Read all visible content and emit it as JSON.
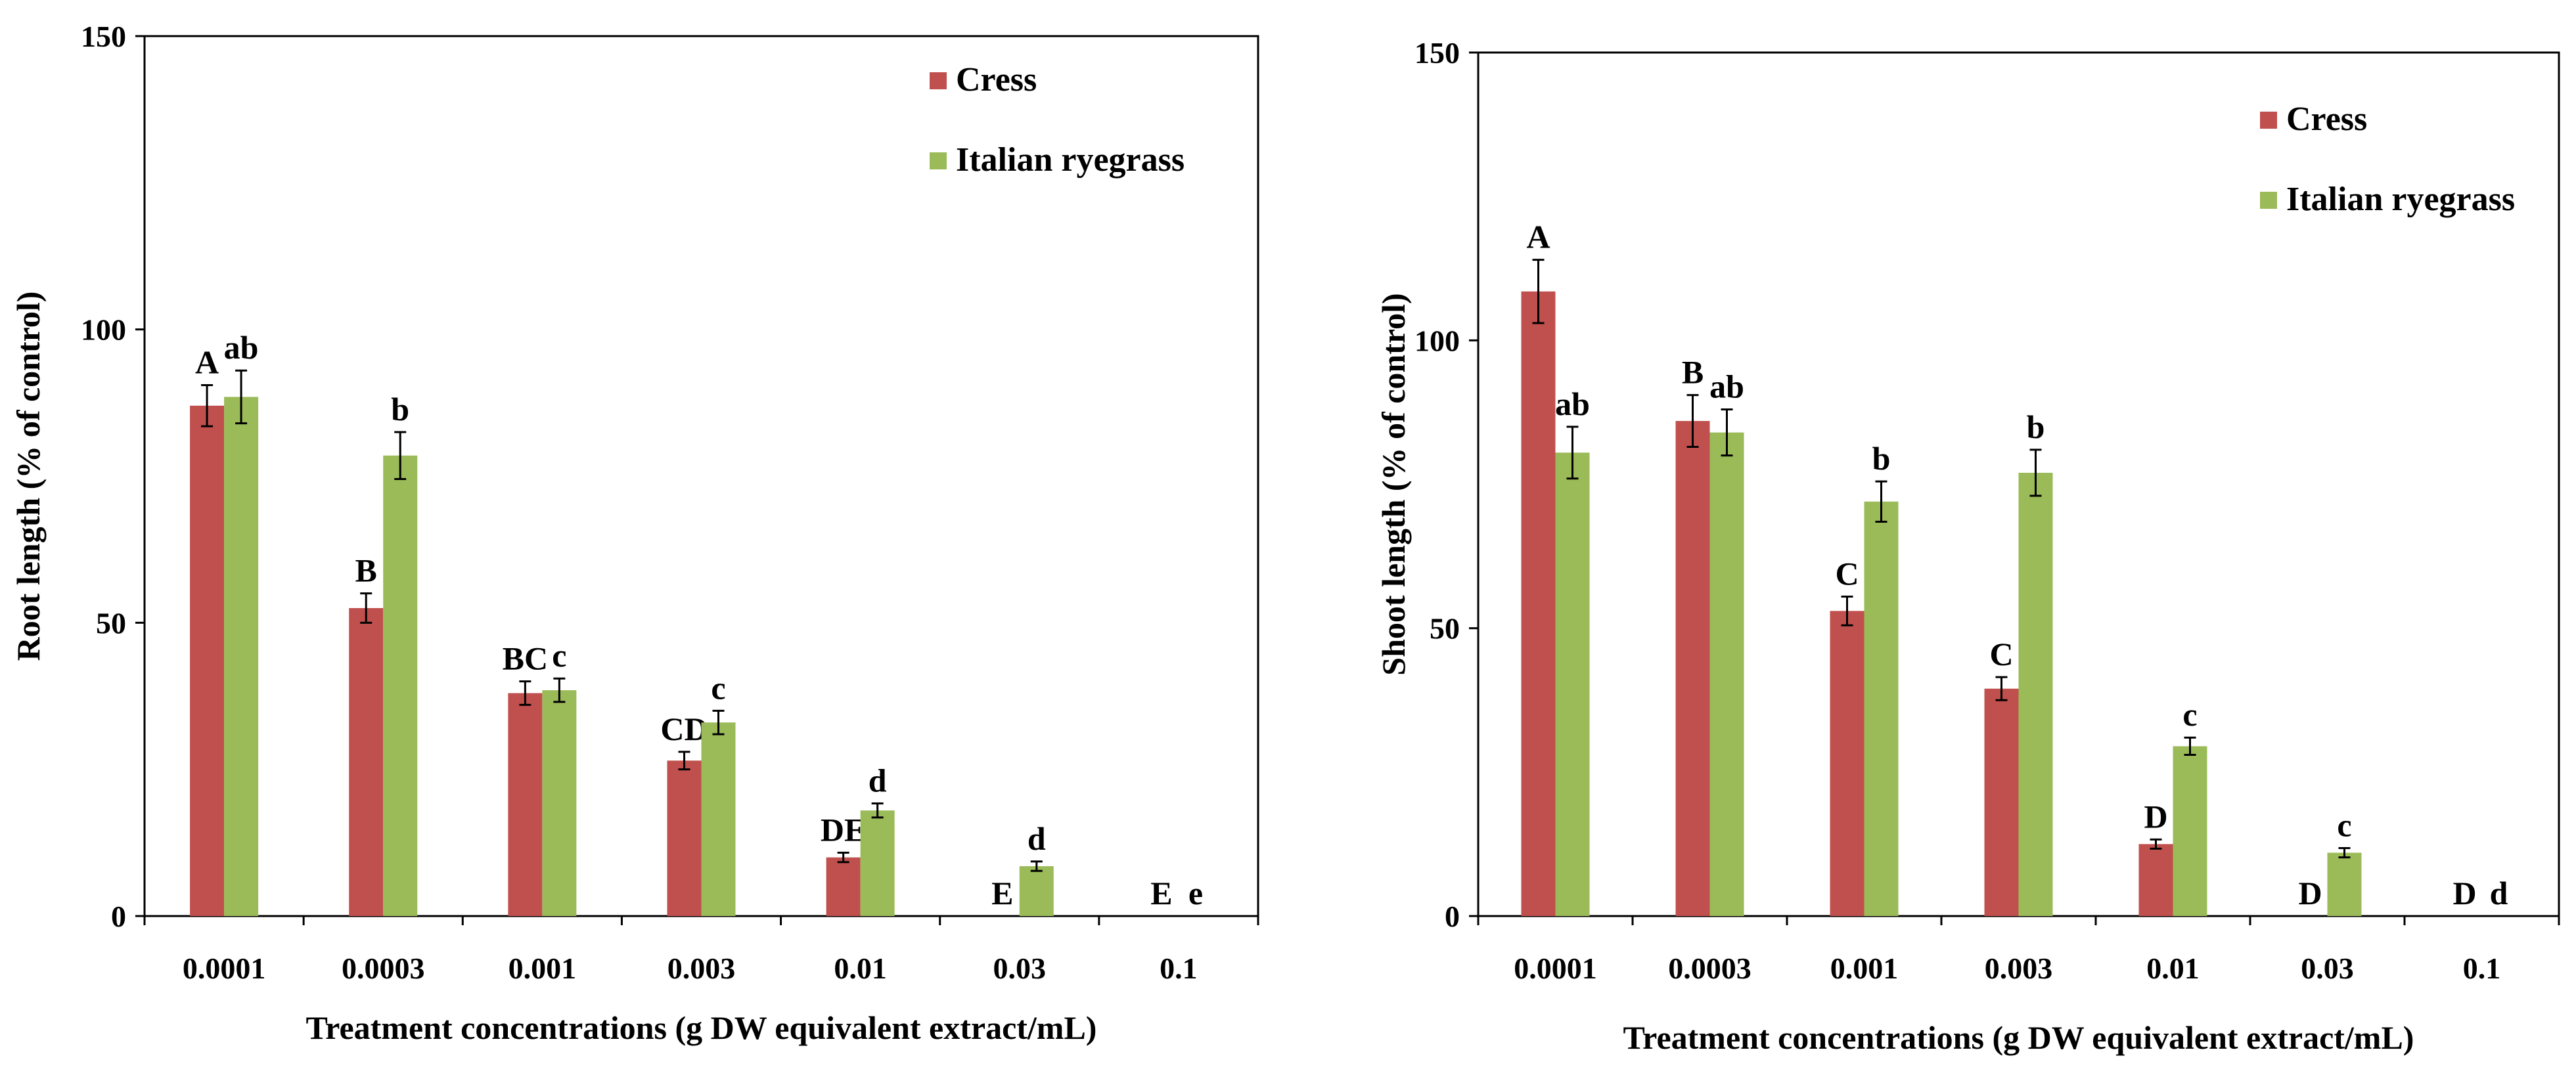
{
  "colors": {
    "cress": "#c0504d",
    "ryegrass": "#9bbb59",
    "axis": "#000000"
  },
  "chart_data": [
    {
      "type": "bar",
      "title": "",
      "xlabel": "Treatment concentrations (g DW equivalent extract/mL)",
      "ylabel": "Root length (% of control)",
      "ylim": [
        0,
        150
      ],
      "yticks": [
        0,
        50,
        100,
        150
      ],
      "categories": [
        "0.0001",
        "0.0003",
        "0.001",
        "0.003",
        "0.01",
        "0.03",
        "0.1"
      ],
      "legend_position": "top-right",
      "series": [
        {
          "name": "Cress",
          "color_key": "cress",
          "values": [
            87,
            52.5,
            38,
            26.5,
            10,
            0,
            0
          ],
          "errors": [
            3.5,
            2.5,
            2,
            1.5,
            0.8,
            0,
            0
          ],
          "labels": [
            "A",
            "B",
            "BC",
            "CD",
            "DE",
            "E",
            "E"
          ]
        },
        {
          "name": "Italian ryegrass",
          "color_key": "ryegrass",
          "values": [
            88.5,
            78.5,
            38.5,
            33,
            18,
            8.5,
            0
          ],
          "errors": [
            4.5,
            4,
            2,
            2,
            1.2,
            0.8,
            0
          ],
          "labels": [
            "ab",
            "b",
            "c",
            "c",
            "d",
            "d",
            "e"
          ]
        }
      ]
    },
    {
      "type": "bar",
      "title": "",
      "xlabel": "Treatment concentrations (g DW equivalent extract/mL)",
      "ylabel": "Shoot length (% of control)",
      "ylim": [
        0,
        150
      ],
      "yticks": [
        0,
        50,
        100,
        150
      ],
      "categories": [
        "0.0001",
        "0.0003",
        "0.001",
        "0.003",
        "0.01",
        "0.03",
        "0.1"
      ],
      "legend_position": "top-right",
      "series": [
        {
          "name": "Cress",
          "color_key": "cress",
          "values": [
            108.5,
            86,
            53,
            39.5,
            12.5,
            0,
            0
          ],
          "errors": [
            5.5,
            4.5,
            2.5,
            2,
            0.8,
            0,
            0
          ],
          "labels": [
            "A",
            "B",
            "C",
            "C",
            "D",
            "D",
            "D"
          ]
        },
        {
          "name": "Italian ryegrass",
          "color_key": "ryegrass",
          "values": [
            80.5,
            84,
            72,
            77,
            29.5,
            11,
            0
          ],
          "errors": [
            4.5,
            4,
            3.5,
            4,
            1.5,
            0.8,
            0
          ],
          "labels": [
            "ab",
            "ab",
            "b",
            "b",
            "c",
            "c",
            "d"
          ]
        }
      ]
    }
  ]
}
